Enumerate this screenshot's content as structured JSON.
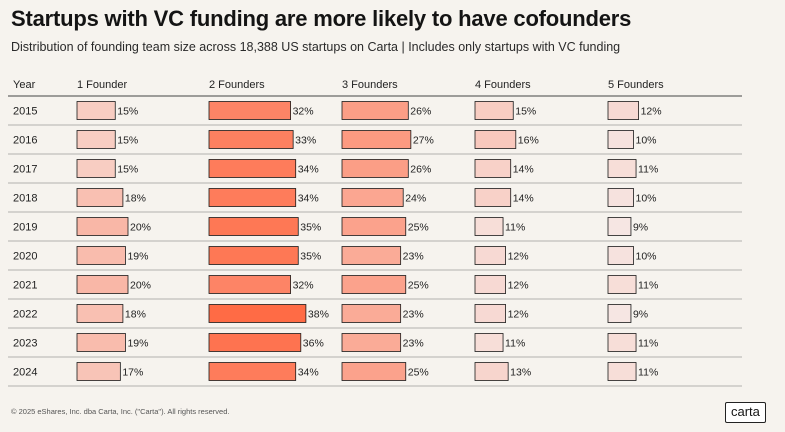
{
  "header": {
    "title": "Startups with VC funding are more likely to have cofounders",
    "subtitle": "Distribution of founding team size across 18,388 US startups on Carta | Includes only startups with VC funding"
  },
  "footer": {
    "copyright": "© 2025 eShares, Inc. dba Carta, Inc. (\"Carta\"). All rights reserved.",
    "logo_text": "carta"
  },
  "chart_data": {
    "type": "table",
    "row_header": "Year",
    "categories": [
      "2015",
      "2016",
      "2017",
      "2018",
      "2019",
      "2020",
      "2021",
      "2022",
      "2023",
      "2024"
    ],
    "series": [
      {
        "name": "1 Founder",
        "values": [
          15,
          15,
          15,
          18,
          20,
          19,
          20,
          18,
          19,
          17
        ]
      },
      {
        "name": "2 Founders",
        "values": [
          32,
          33,
          34,
          34,
          35,
          35,
          32,
          38,
          36,
          34
        ]
      },
      {
        "name": "3 Founders",
        "values": [
          26,
          27,
          26,
          24,
          25,
          23,
          25,
          23,
          23,
          25
        ]
      },
      {
        "name": "4 Founders",
        "values": [
          15,
          16,
          14,
          14,
          11,
          12,
          12,
          12,
          11,
          13
        ]
      },
      {
        "name": "5 Founders",
        "values": [
          12,
          10,
          11,
          10,
          9,
          10,
          11,
          9,
          11,
          11
        ]
      }
    ],
    "value_suffix": "%",
    "color_scale": {
      "low": "#f6e6e3",
      "high": "#ff6b45"
    }
  }
}
